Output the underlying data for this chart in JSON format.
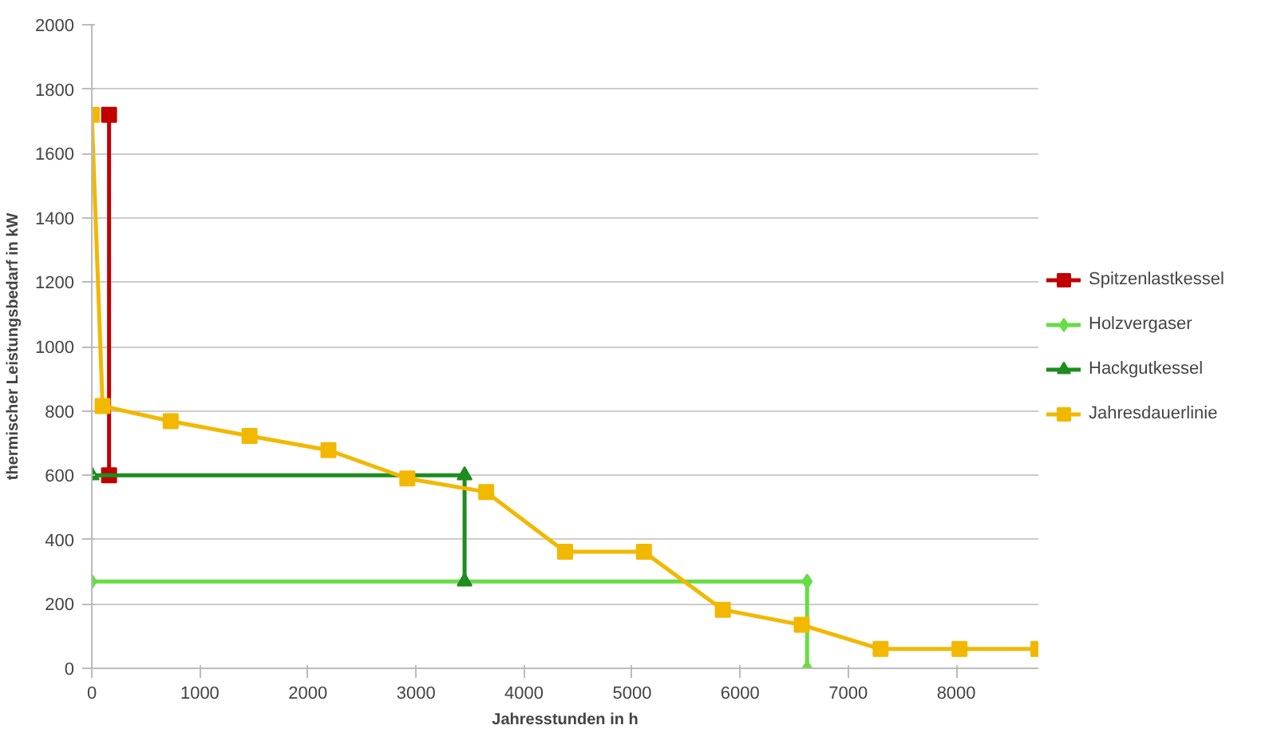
{
  "chart_data": {
    "type": "line",
    "xlabel": "Jahresstunden in h",
    "ylabel": "thermischer Leistungsbedarf in kW",
    "xlim": [
      0,
      8760
    ],
    "xticks": [
      0,
      1000,
      2000,
      3000,
      4000,
      5000,
      6000,
      7000,
      8000
    ],
    "ylim": [
      0,
      2000
    ],
    "yticks": [
      0,
      200,
      400,
      600,
      800,
      1000,
      1200,
      1400,
      1600,
      1800,
      2000
    ],
    "grid": "y",
    "legend": "right",
    "line_style": "solid",
    "series": [
      {
        "name": "Spitzenlastkessel",
        "type": "line",
        "color": "#c00000",
        "marker": "square",
        "x": [
          160,
          160
        ],
        "values": [
          1720,
          600
        ]
      },
      {
        "name": "Holzvergaser",
        "color": "#66dd44",
        "marker": "diamond",
        "x": [
          0,
          6620,
          6620
        ],
        "values": [
          270,
          270,
          0
        ]
      },
      {
        "name": "Hackgutkessel",
        "color": "#1e8c1e",
        "marker": "triangle",
        "x": [
          0,
          3450,
          3450
        ],
        "values": [
          600,
          600,
          270
        ]
      },
      {
        "name": "Jahresdauerlinie",
        "color": "#f2b800",
        "marker": "square",
        "x": [
          0,
          100,
          730,
          1460,
          2190,
          2920,
          3650,
          4380,
          5110,
          5840,
          6570,
          7300,
          8030,
          8760
        ],
        "values": [
          1720,
          815,
          768,
          722,
          678,
          590,
          548,
          362,
          362,
          182,
          135,
          60,
          60,
          60
        ]
      }
    ]
  }
}
